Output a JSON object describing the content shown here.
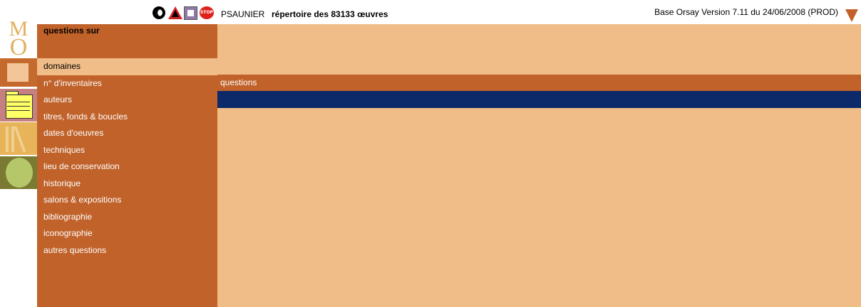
{
  "logo": {
    "letter_m": "M",
    "letter_o": "O"
  },
  "header": {
    "icons": [
      "yin-yang-icon",
      "warning-icon",
      "tool-icon",
      "stop-icon"
    ],
    "stop_text": "STOP",
    "user": "PSAUNIER",
    "repository": "répertoire des 83133 œuvres",
    "version": "Base Orsay Version 7.11 du 24/06/2008 (PROD)"
  },
  "menu": {
    "title": "questions sur",
    "items": [
      "domaines",
      "n° d'inventaires",
      "auteurs",
      "titres, fonds & boucles",
      "dates d'oeuvres",
      "techniques",
      "lieu de conservation",
      "historique",
      "salons & expositions",
      "bibliographie",
      "iconographie",
      "autres questions"
    ],
    "active_index": 0
  },
  "main": {
    "questions_label": "questions"
  },
  "colors": {
    "menu_bg": "#c0622a",
    "panel_bg": "#f0bc88",
    "nav_bar": "#0c2a6a"
  }
}
